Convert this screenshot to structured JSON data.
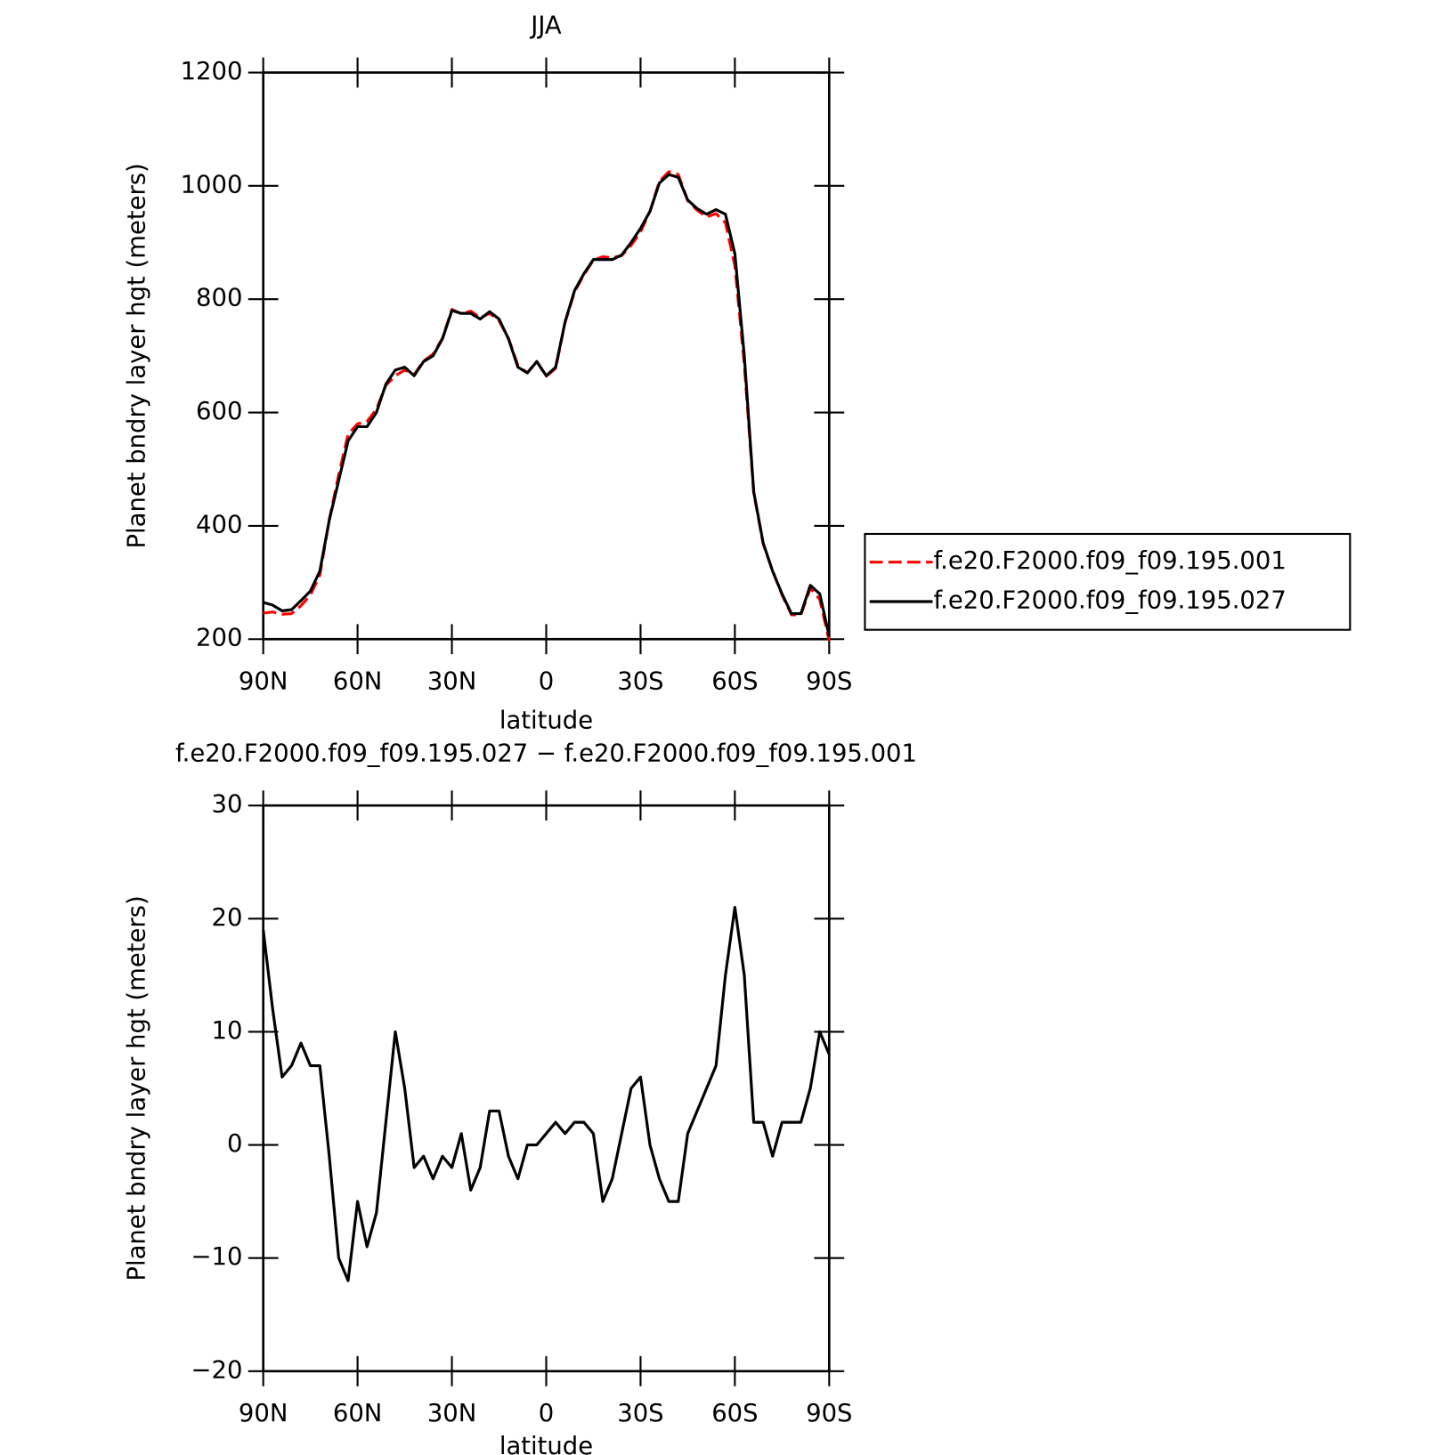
{
  "chart_data": [
    {
      "type": "line",
      "title": "JJA",
      "xlabel": "latitude",
      "ylabel": "Planet bndry layer hgt (meters)",
      "x": [
        90,
        87,
        84,
        81,
        78,
        75,
        72,
        69,
        66,
        63,
        60,
        57,
        54,
        51,
        48,
        45,
        42,
        39,
        36,
        33,
        30,
        27,
        24,
        21,
        18,
        15,
        12,
        9,
        6,
        3,
        0,
        -3,
        -6,
        -9,
        -12,
        -15,
        -18,
        -21,
        -24,
        -27,
        -30,
        -33,
        -36,
        -39,
        -42,
        -45,
        -48,
        -51,
        -54,
        -57,
        -60,
        -63,
        -66,
        -69,
        -72,
        -75,
        -78,
        -81,
        -84,
        -87,
        -90
      ],
      "xlim": [
        90,
        -90
      ],
      "xticks": [
        {
          "value": 90,
          "label": "90N"
        },
        {
          "value": 60,
          "label": "60N"
        },
        {
          "value": 30,
          "label": "30N"
        },
        0,
        {
          "value": -30,
          "label": "30S"
        },
        {
          "value": -60,
          "label": "60S"
        },
        {
          "value": -90,
          "label": "90S"
        }
      ],
      "ylim": [
        200,
        1200
      ],
      "yticks": [
        200,
        400,
        600,
        800,
        1000,
        1200
      ],
      "legend": "right",
      "series": [
        {
          "name": "f.e20.F2000.f09_f09.195.001",
          "color": "#ff0000",
          "dash": true,
          "values": [
            246,
            248,
            244,
            245,
            259,
            278,
            313,
            411,
            490,
            562,
            580,
            584,
            606,
            648,
            665,
            675,
            667,
            691,
            703,
            731,
            782,
            774,
            779,
            767,
            775,
            762,
            731,
            683,
            670,
            690,
            664,
            678,
            759,
            813,
            843,
            869,
            875,
            873,
            877,
            895,
            919,
            955,
            1008,
            1025,
            1020,
            974,
            957,
            945,
            951,
            935,
            859,
            685,
            458,
            368,
            321,
            278,
            243,
            243,
            290,
            270,
            197
          ]
        },
        {
          "name": "f.e20.F2000.f09_f09.195.027",
          "color": "#000000",
          "dash": false,
          "values": [
            265,
            260,
            250,
            252,
            268,
            285,
            320,
            410,
            480,
            550,
            575,
            575,
            600,
            650,
            675,
            680,
            665,
            690,
            700,
            730,
            780,
            775,
            775,
            765,
            778,
            765,
            730,
            680,
            670,
            690,
            665,
            680,
            760,
            815,
            845,
            870,
            870,
            870,
            878,
            900,
            925,
            955,
            1005,
            1020,
            1015,
            975,
            960,
            950,
            958,
            950,
            880,
            700,
            460,
            370,
            320,
            280,
            245,
            245,
            295,
            280,
            205
          ]
        }
      ]
    },
    {
      "type": "line",
      "title": "f.e20.F2000.f09_f09.195.027 − f.e20.F2000.f09_f09.195.001",
      "xlabel": "latitude",
      "ylabel": "Planet bndry layer hgt (meters)",
      "x": [
        90,
        87,
        84,
        81,
        78,
        75,
        72,
        69,
        66,
        63,
        60,
        57,
        54,
        51,
        48,
        45,
        42,
        39,
        36,
        33,
        30,
        27,
        24,
        21,
        18,
        15,
        12,
        9,
        6,
        3,
        0,
        -3,
        -6,
        -9,
        -12,
        -15,
        -18,
        -21,
        -24,
        -27,
        -30,
        -33,
        -36,
        -39,
        -42,
        -45,
        -48,
        -51,
        -54,
        -57,
        -60,
        -63,
        -66,
        -69,
        -72,
        -75,
        -78,
        -81,
        -84,
        -87,
        -90
      ],
      "xlim": [
        90,
        -90
      ],
      "xticks": [
        {
          "value": 90,
          "label": "90N"
        },
        {
          "value": 60,
          "label": "60N"
        },
        {
          "value": 30,
          "label": "30N"
        },
        0,
        {
          "value": -30,
          "label": "30S"
        },
        {
          "value": -60,
          "label": "60S"
        },
        {
          "value": -90,
          "label": "90S"
        }
      ],
      "ylim": [
        -20,
        30
      ],
      "yticks": [
        {
          "value": -20,
          "label": "−20"
        },
        {
          "value": -10,
          "label": "−10"
        },
        0,
        10,
        20,
        30
      ],
      "series": [
        {
          "color": "#000000",
          "dash": false,
          "values": [
            19,
            12,
            6,
            7,
            9,
            7,
            7,
            -1,
            -10,
            -12,
            -5,
            -9,
            -6,
            2,
            10,
            5,
            -2,
            -1,
            -3,
            -1,
            -2,
            1,
            -4,
            -2,
            3,
            3,
            -1,
            -3,
            0,
            0,
            1,
            2,
            1,
            2,
            2,
            1,
            -5,
            -3,
            1,
            5,
            6,
            0,
            -3,
            -5,
            -5,
            1,
            3,
            5,
            7,
            15,
            21,
            15,
            2,
            2,
            -1,
            2,
            2,
            2,
            5,
            10,
            8
          ]
        }
      ]
    }
  ]
}
